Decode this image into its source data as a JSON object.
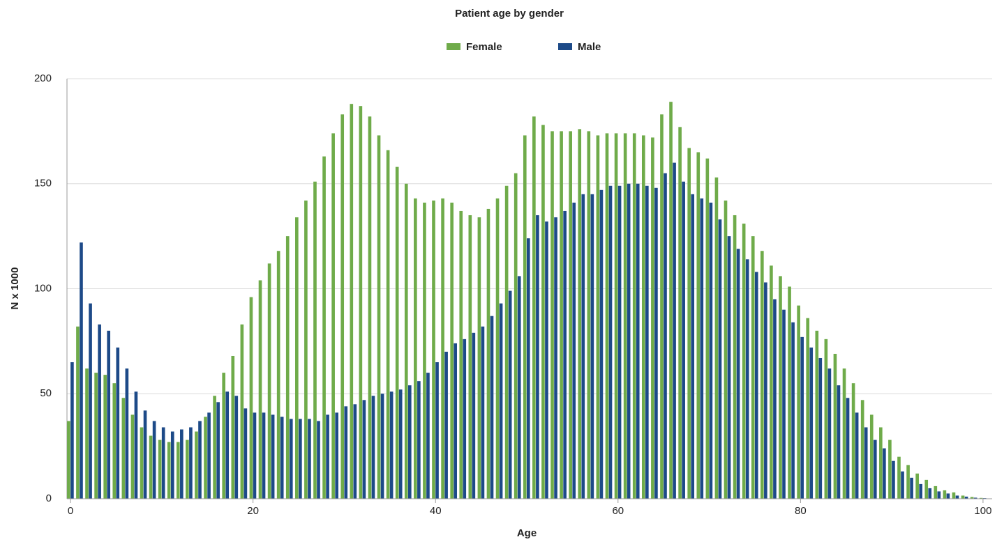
{
  "chart_data": {
    "type": "bar",
    "title": "Patient age by gender",
    "xlabel": "Age",
    "ylabel": "N x 1000",
    "x": [
      0,
      1,
      2,
      3,
      4,
      5,
      6,
      7,
      8,
      9,
      10,
      11,
      12,
      13,
      14,
      15,
      16,
      17,
      18,
      19,
      20,
      21,
      22,
      23,
      24,
      25,
      26,
      27,
      28,
      29,
      30,
      31,
      32,
      33,
      34,
      35,
      36,
      37,
      38,
      39,
      40,
      41,
      42,
      43,
      44,
      45,
      46,
      47,
      48,
      49,
      50,
      51,
      52,
      53,
      54,
      55,
      56,
      57,
      58,
      59,
      60,
      61,
      62,
      63,
      64,
      65,
      66,
      67,
      68,
      69,
      70,
      71,
      72,
      73,
      74,
      75,
      76,
      77,
      78,
      79,
      80,
      81,
      82,
      83,
      84,
      85,
      86,
      87,
      88,
      89,
      90,
      91,
      92,
      93,
      94,
      95,
      96,
      97,
      98,
      99,
      100
    ],
    "series": [
      {
        "name": "Female",
        "color": "#6fab4a",
        "values": [
          37,
          82,
          62,
          60,
          59,
          55,
          48,
          40,
          34,
          30,
          28,
          27,
          27,
          28,
          32,
          39,
          49,
          60,
          68,
          83,
          96,
          104,
          112,
          118,
          125,
          134,
          142,
          151,
          163,
          174,
          183,
          188,
          187,
          182,
          173,
          166,
          158,
          150,
          143,
          141,
          142,
          143,
          141,
          137,
          135,
          134,
          138,
          143,
          149,
          155,
          173,
          182,
          178,
          175,
          175,
          175,
          176,
          175,
          173,
          174,
          174,
          174,
          174,
          173,
          172,
          183,
          189,
          177,
          167,
          165,
          162,
          153,
          142,
          135,
          131,
          125,
          118,
          111,
          106,
          101,
          92,
          86,
          80,
          76,
          69,
          62,
          55,
          47,
          40,
          34,
          28,
          20,
          16,
          12,
          9,
          6,
          4,
          3,
          1.5,
          0.8,
          0.4
        ]
      },
      {
        "name": "Male",
        "color": "#1d4a88",
        "values": [
          65,
          122,
          93,
          83,
          80,
          72,
          62,
          51,
          42,
          37,
          34,
          32,
          33,
          34,
          37,
          41,
          46,
          51,
          49,
          43,
          41,
          41,
          40,
          39,
          38,
          38,
          38,
          37,
          40,
          41,
          44,
          45,
          47,
          49,
          50,
          51,
          52,
          54,
          56,
          60,
          65,
          70,
          74,
          76,
          79,
          82,
          87,
          93,
          99,
          106,
          124,
          135,
          132,
          134,
          137,
          141,
          145,
          145,
          147,
          149,
          149,
          150,
          150,
          149,
          148,
          155,
          160,
          151,
          145,
          143,
          141,
          133,
          125,
          119,
          114,
          108,
          103,
          95,
          90,
          84,
          77,
          72,
          67,
          62,
          54,
          48,
          41,
          34,
          28,
          24,
          18,
          13,
          10,
          7,
          5,
          3.5,
          2.5,
          1.5,
          1,
          0.5,
          0.3
        ]
      }
    ],
    "xlim": [
      -1,
      101
    ],
    "xticks": [
      0,
      20,
      40,
      60,
      80,
      100
    ],
    "ylim": [
      0,
      200
    ],
    "yticks": [
      0,
      50,
      100,
      150,
      200
    ],
    "grid": true,
    "legend": "top"
  }
}
